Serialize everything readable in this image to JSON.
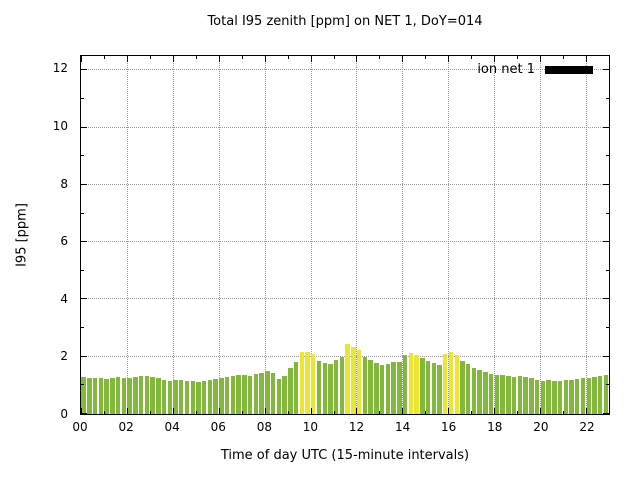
{
  "legend": {
    "label": "ion net 1",
    "swatch_color": "#000000"
  },
  "chart_data": {
    "type": "bar",
    "title": "Total I95 zenith [ppm] on NET 1, DoY=014",
    "xlabel": "Time of day UTC (15-minute intervals)",
    "ylabel": "I95 [ppm]",
    "xlim": [
      0,
      23
    ],
    "ylim": [
      0,
      12.5
    ],
    "x_ticks": [
      "00",
      "02",
      "04",
      "06",
      "08",
      "10",
      "12",
      "14",
      "16",
      "18",
      "20",
      "22"
    ],
    "x_tick_values": [
      0,
      2,
      4,
      6,
      8,
      10,
      12,
      14,
      16,
      18,
      20,
      22
    ],
    "y_ticks": [
      0,
      2,
      4,
      6,
      8,
      10,
      12
    ],
    "grid": true,
    "legend_position": "top-right",
    "interval_minutes": 15,
    "start_time": "00:00",
    "end_time": "22:45",
    "series": [
      {
        "name": "ion net 1",
        "color_normal": "#82b93c",
        "color_highlight": "#ece631",
        "values": [
          1.3,
          1.27,
          1.25,
          1.26,
          1.22,
          1.25,
          1.28,
          1.26,
          1.27,
          1.3,
          1.32,
          1.34,
          1.3,
          1.25,
          1.2,
          1.17,
          1.2,
          1.18,
          1.15,
          1.14,
          1.12,
          1.15,
          1.18,
          1.22,
          1.26,
          1.3,
          1.32,
          1.35,
          1.36,
          1.32,
          1.4,
          1.44,
          1.5,
          1.42,
          1.22,
          1.32,
          1.6,
          1.8,
          2.15,
          2.17,
          2.1,
          1.85,
          1.78,
          1.76,
          1.9,
          2.0,
          2.45,
          2.35,
          2.25,
          2.0,
          1.9,
          1.78,
          1.72,
          1.75,
          1.8,
          1.82,
          2.05,
          2.12,
          2.06,
          1.95,
          1.85,
          1.78,
          1.7,
          2.1,
          2.15,
          2.05,
          1.85,
          1.75,
          1.6,
          1.52,
          1.46,
          1.4,
          1.36,
          1.35,
          1.32,
          1.3,
          1.34,
          1.3,
          1.25,
          1.2,
          1.16,
          1.2,
          1.16,
          1.15,
          1.2,
          1.2,
          1.22,
          1.25,
          1.26,
          1.3,
          1.33,
          1.35
        ],
        "highlight_indices": [
          38,
          39,
          40,
          46,
          47,
          48,
          57,
          58,
          63,
          64,
          65
        ],
        "highlight_times": [
          "09:30",
          "09:45",
          "10:00",
          "11:30",
          "11:45",
          "12:00",
          "14:15",
          "14:30",
          "15:45",
          "16:00",
          "16:15"
        ]
      }
    ]
  }
}
